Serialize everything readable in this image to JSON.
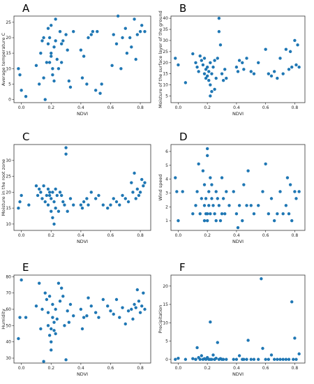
{
  "chart_data": [
    {
      "type": "scatter",
      "panel": "A",
      "xlabel": "NDVI",
      "ylabel": "Average temperature C",
      "xlim": [
        -0.05,
        0.87
      ],
      "ylim": [
        -1,
        27
      ],
      "xticks": [
        "0.0",
        "0.2",
        "0.4",
        "0.6",
        "0.8"
      ],
      "yticks": [
        "0",
        "5",
        "10",
        "15",
        "20",
        "25"
      ],
      "x": [
        -0.02,
        -0.01,
        0.0,
        0.03,
        0.1,
        0.12,
        0.13,
        0.14,
        0.15,
        0.16,
        0.17,
        0.18,
        0.18,
        0.19,
        0.19,
        0.2,
        0.2,
        0.21,
        0.21,
        0.22,
        0.22,
        0.23,
        0.23,
        0.24,
        0.25,
        0.26,
        0.27,
        0.28,
        0.3,
        0.31,
        0.32,
        0.33,
        0.35,
        0.4,
        0.41,
        0.42,
        0.44,
        0.45,
        0.47,
        0.48,
        0.5,
        0.51,
        0.53,
        0.54,
        0.61,
        0.62,
        0.64,
        0.65,
        0.67,
        0.68,
        0.7,
        0.71,
        0.73,
        0.74,
        0.76,
        0.77,
        0.78,
        0.8,
        0.81,
        0.83,
        0.15,
        0.2,
        0.27
      ],
      "y": [
        10,
        8,
        3,
        1,
        11,
        5,
        15,
        19,
        7,
        0,
        12,
        23,
        18,
        12,
        20,
        24,
        15,
        10,
        8,
        17,
        6,
        26,
        19,
        13,
        10,
        22,
        18,
        19,
        21,
        16,
        6,
        4,
        22,
        16,
        7,
        14,
        5,
        20,
        21,
        22,
        3,
        22,
        2,
        5,
        11,
        21,
        18,
        27,
        10,
        20,
        23,
        15,
        20,
        17,
        26,
        13,
        21,
        22,
        24,
        22,
        20,
        14,
        12
      ]
    },
    {
      "type": "scatter",
      "panel": "B",
      "xlabel": "NDVI",
      "ylabel": "Moisture of the surface layer of the ground",
      "xlim": [
        -0.05,
        0.87
      ],
      "ylim": [
        2,
        41
      ],
      "xticks": [
        "0.0",
        "0.2",
        "0.4",
        "0.6",
        "0.8"
      ],
      "yticks": [
        "5",
        "10",
        "15",
        "20",
        "25",
        "30",
        "35",
        "40"
      ],
      "x": [
        -0.02,
        0.0,
        0.05,
        0.1,
        0.12,
        0.13,
        0.14,
        0.15,
        0.16,
        0.17,
        0.18,
        0.18,
        0.19,
        0.19,
        0.2,
        0.2,
        0.21,
        0.21,
        0.22,
        0.22,
        0.23,
        0.23,
        0.24,
        0.25,
        0.26,
        0.27,
        0.28,
        0.28,
        0.29,
        0.3,
        0.31,
        0.32,
        0.33,
        0.4,
        0.41,
        0.42,
        0.44,
        0.45,
        0.47,
        0.5,
        0.52,
        0.55,
        0.6,
        0.62,
        0.64,
        0.66,
        0.68,
        0.7,
        0.72,
        0.74,
        0.76,
        0.77,
        0.78,
        0.8,
        0.81,
        0.82,
        0.83,
        0.22,
        0.25
      ],
      "y": [
        22,
        19,
        11,
        24,
        20,
        18,
        16,
        23,
        21,
        19,
        15,
        22,
        13,
        17,
        14,
        18,
        12,
        16,
        10,
        20,
        7,
        15,
        18,
        21,
        13,
        22,
        40,
        34,
        28,
        15,
        12,
        17,
        13,
        18,
        16,
        21,
        20,
        17,
        22,
        16,
        15,
        20,
        26,
        15,
        14,
        16,
        13,
        22,
        15,
        26,
        17,
        25,
        18,
        30,
        19,
        28,
        18,
        5,
        8
      ]
    },
    {
      "type": "scatter",
      "panel": "C",
      "xlabel": "NDVI",
      "ylabel": "Moisture in the root zone",
      "xlim": [
        -0.05,
        0.87
      ],
      "ylim": [
        8,
        35
      ],
      "xticks": [
        "0.0",
        "0.2",
        "0.4",
        "0.6",
        "0.8"
      ],
      "yticks": [
        "10",
        "15",
        "20",
        "25",
        "30"
      ],
      "x": [
        -0.02,
        -0.01,
        0.0,
        0.05,
        0.1,
        0.11,
        0.12,
        0.13,
        0.14,
        0.15,
        0.16,
        0.17,
        0.18,
        0.18,
        0.19,
        0.19,
        0.2,
        0.2,
        0.21,
        0.21,
        0.22,
        0.22,
        0.23,
        0.23,
        0.24,
        0.25,
        0.26,
        0.27,
        0.28,
        0.29,
        0.3,
        0.3,
        0.31,
        0.33,
        0.35,
        0.4,
        0.41,
        0.42,
        0.44,
        0.45,
        0.47,
        0.5,
        0.52,
        0.55,
        0.58,
        0.6,
        0.62,
        0.64,
        0.66,
        0.68,
        0.7,
        0.72,
        0.74,
        0.75,
        0.76,
        0.77,
        0.78,
        0.79,
        0.8,
        0.81,
        0.82,
        0.83
      ],
      "y": [
        15,
        17,
        19,
        16,
        22,
        19,
        21,
        20,
        18,
        22,
        17,
        19,
        21,
        16,
        20,
        19,
        18,
        14,
        20,
        12,
        10,
        17,
        21,
        15,
        19,
        14,
        20,
        19,
        17,
        16,
        32,
        34,
        14,
        18,
        16,
        16,
        15,
        17,
        18,
        16,
        20,
        18,
        19,
        16,
        15,
        16,
        18,
        17,
        16,
        19,
        18,
        17,
        23,
        20,
        26,
        18,
        21,
        19,
        20,
        24,
        22,
        23
      ]
    },
    {
      "type": "scatter",
      "panel": "D",
      "xlabel": "NDVI",
      "ylabel": "Wind speed",
      "xlim": [
        -0.05,
        0.87
      ],
      "ylim": [
        0.3,
        6.5
      ],
      "xticks": [
        "0.0",
        "0.2",
        "0.4",
        "0.6",
        "0.8"
      ],
      "yticks": [
        "1",
        "2",
        "3",
        "4",
        "5",
        "6"
      ],
      "x": [
        -0.02,
        -0.01,
        0.0,
        0.03,
        0.1,
        0.12,
        0.13,
        0.14,
        0.15,
        0.16,
        0.17,
        0.18,
        0.18,
        0.19,
        0.19,
        0.2,
        0.2,
        0.2,
        0.21,
        0.21,
        0.22,
        0.22,
        0.23,
        0.23,
        0.24,
        0.25,
        0.26,
        0.27,
        0.28,
        0.29,
        0.3,
        0.31,
        0.32,
        0.33,
        0.35,
        0.38,
        0.4,
        0.41,
        0.42,
        0.44,
        0.45,
        0.47,
        0.48,
        0.5,
        0.52,
        0.55,
        0.58,
        0.6,
        0.62,
        0.64,
        0.66,
        0.68,
        0.7,
        0.72,
        0.74,
        0.75,
        0.76,
        0.77,
        0.78,
        0.8,
        0.81,
        0.83,
        0.18,
        0.2,
        0.26,
        0.3
      ],
      "y": [
        4.1,
        3.1,
        1.0,
        3.1,
        1.5,
        2.1,
        3.1,
        5.1,
        1.5,
        2.6,
        4.6,
        2.1,
        3.6,
        1.5,
        2.6,
        6.2,
        5.7,
        1.0,
        3.1,
        2.1,
        4.1,
        1.5,
        2.6,
        3.6,
        2.1,
        1.5,
        3.1,
        2.6,
        2.1,
        1.0,
        4.1,
        2.6,
        1.5,
        3.1,
        2.1,
        3.1,
        1.5,
        0.5,
        2.1,
        1.0,
        3.6,
        2.1,
        4.6,
        2.1,
        1.5,
        2.1,
        3.1,
        5.1,
        1.5,
        2.6,
        1.0,
        1.5,
        3.1,
        1.5,
        2.1,
        4.1,
        1.5,
        3.6,
        1.0,
        3.1,
        2.6,
        3.1,
        1.0,
        1.5,
        1.0,
        1.5
      ]
    },
    {
      "type": "scatter",
      "panel": "E",
      "xlabel": "NDVI",
      "ylabel": "Humidity",
      "xlim": [
        -0.05,
        0.87
      ],
      "ylim": [
        27,
        81
      ],
      "xticks": [
        "0.0",
        "0.2",
        "0.4",
        "0.6",
        "0.8"
      ],
      "yticks": [
        "30",
        "40",
        "50",
        "60",
        "70",
        "80"
      ],
      "x": [
        -0.02,
        -0.01,
        0.0,
        0.03,
        0.1,
        0.12,
        0.13,
        0.14,
        0.15,
        0.16,
        0.17,
        0.18,
        0.18,
        0.19,
        0.19,
        0.2,
        0.2,
        0.2,
        0.21,
        0.21,
        0.22,
        0.22,
        0.23,
        0.23,
        0.24,
        0.25,
        0.26,
        0.27,
        0.28,
        0.29,
        0.3,
        0.31,
        0.32,
        0.33,
        0.35,
        0.4,
        0.41,
        0.42,
        0.44,
        0.45,
        0.47,
        0.5,
        0.52,
        0.55,
        0.58,
        0.6,
        0.62,
        0.64,
        0.66,
        0.68,
        0.7,
        0.72,
        0.74,
        0.75,
        0.76,
        0.77,
        0.78,
        0.79,
        0.8,
        0.81,
        0.82,
        0.83
      ],
      "y": [
        42,
        55,
        78,
        55,
        62,
        76,
        48,
        60,
        28,
        70,
        66,
        58,
        50,
        44,
        68,
        48,
        40,
        35,
        55,
        63,
        47,
        52,
        45,
        60,
        54,
        76,
        65,
        73,
        68,
        50,
        29,
        59,
        52,
        63,
        56,
        60,
        48,
        55,
        56,
        67,
        62,
        58,
        55,
        66,
        62,
        59,
        57,
        66,
        55,
        61,
        51,
        59,
        60,
        54,
        63,
        61,
        72,
        65,
        58,
        62,
        70,
        60
      ]
    },
    {
      "type": "scatter",
      "panel": "F",
      "xlabel": "NDVI",
      "ylabel": "Precipitation",
      "xlim": [
        -0.05,
        0.87
      ],
      "ylim": [
        -1,
        23
      ],
      "xticks": [
        "0.0",
        "0.2",
        "0.4",
        "0.6",
        "0.8"
      ],
      "yticks": [
        "0",
        "5",
        "10",
        "15",
        "20"
      ],
      "x": [
        -0.02,
        0.0,
        0.05,
        0.1,
        0.12,
        0.13,
        0.14,
        0.15,
        0.16,
        0.17,
        0.18,
        0.19,
        0.2,
        0.21,
        0.22,
        0.23,
        0.24,
        0.25,
        0.26,
        0.27,
        0.28,
        0.29,
        0.3,
        0.31,
        0.33,
        0.38,
        0.4,
        0.42,
        0.44,
        0.45,
        0.47,
        0.48,
        0.5,
        0.52,
        0.55,
        0.57,
        0.58,
        0.6,
        0.62,
        0.64,
        0.66,
        0.68,
        0.7,
        0.72,
        0.74,
        0.76,
        0.78,
        0.79,
        0.8,
        0.81,
        0.83,
        0.22,
        0.12,
        0.25
      ],
      "y": [
        0,
        0.3,
        0,
        0.2,
        0,
        3.2,
        0.5,
        0,
        1,
        0,
        0.2,
        0,
        0.5,
        0,
        10.2,
        0,
        1.2,
        0,
        0.3,
        4.6,
        0,
        0.2,
        0,
        0,
        0,
        0,
        0,
        1,
        0,
        0,
        0,
        5.2,
        0,
        0,
        0,
        22,
        3,
        0,
        0,
        1.2,
        0,
        0,
        0,
        0,
        0,
        0,
        15.7,
        0,
        5.8,
        0,
        1.5,
        0,
        0,
        0
      ]
    }
  ]
}
